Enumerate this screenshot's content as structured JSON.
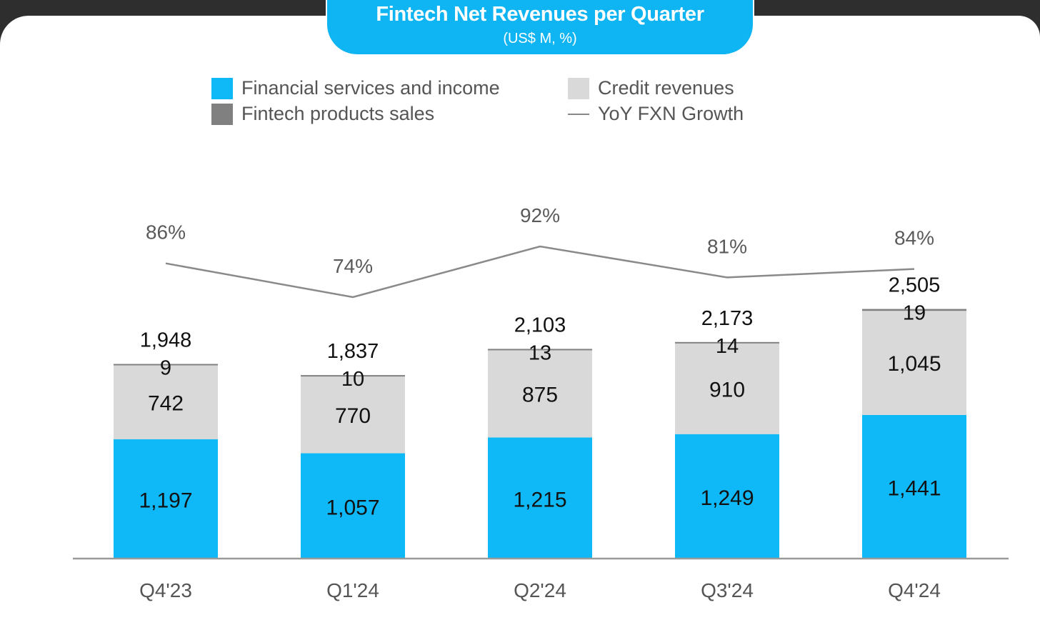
{
  "header": {
    "title": "Fintech Net Revenues per Quarter",
    "subtitle": "(US$ M, %)"
  },
  "legend": {
    "financial_services": "Financial services and income",
    "fintech_products": "Fintech products sales",
    "credit_revenues": "Credit revenues",
    "yoy_growth": "YoY FXN Growth"
  },
  "colors": {
    "financial_services": "#0fb9f7",
    "credit_revenues": "#d9d9d9",
    "fintech_products": "#808080",
    "yoy_line": "#8a8a8a",
    "title_bg": "#0fb4f2"
  },
  "chart_data": {
    "type": "bar",
    "stacked": true,
    "title": "Fintech Net Revenues per Quarter",
    "subtitle": "(US$ M, %)",
    "categories": [
      "Q4'23",
      "Q1'24",
      "Q2'24",
      "Q3'24",
      "Q4'24"
    ],
    "series": [
      {
        "name": "Financial services and income",
        "values": [
          1197,
          1057,
          1215,
          1249,
          1441
        ],
        "labels": [
          "1,197",
          "1,057",
          "1,215",
          "1,249",
          "1,441"
        ]
      },
      {
        "name": "Credit revenues",
        "values": [
          742,
          770,
          875,
          910,
          1045
        ],
        "labels": [
          "742",
          "770",
          "875",
          "910",
          "1,045"
        ]
      },
      {
        "name": "Fintech products sales",
        "values": [
          9,
          10,
          13,
          14,
          19
        ],
        "labels": [
          "9",
          "10",
          "13",
          "14",
          "19"
        ]
      }
    ],
    "totals": [
      1948,
      1837,
      2103,
      2173,
      2505
    ],
    "total_labels": [
      "1,948",
      "1,837",
      "2,103",
      "2,173",
      "2,505"
    ],
    "line": {
      "name": "YoY FXN Growth",
      "values": [
        86,
        74,
        92,
        81,
        84
      ],
      "labels": [
        "86%",
        "74%",
        "92%",
        "81%",
        "84%"
      ]
    },
    "legend_position": "top",
    "grid": false
  }
}
